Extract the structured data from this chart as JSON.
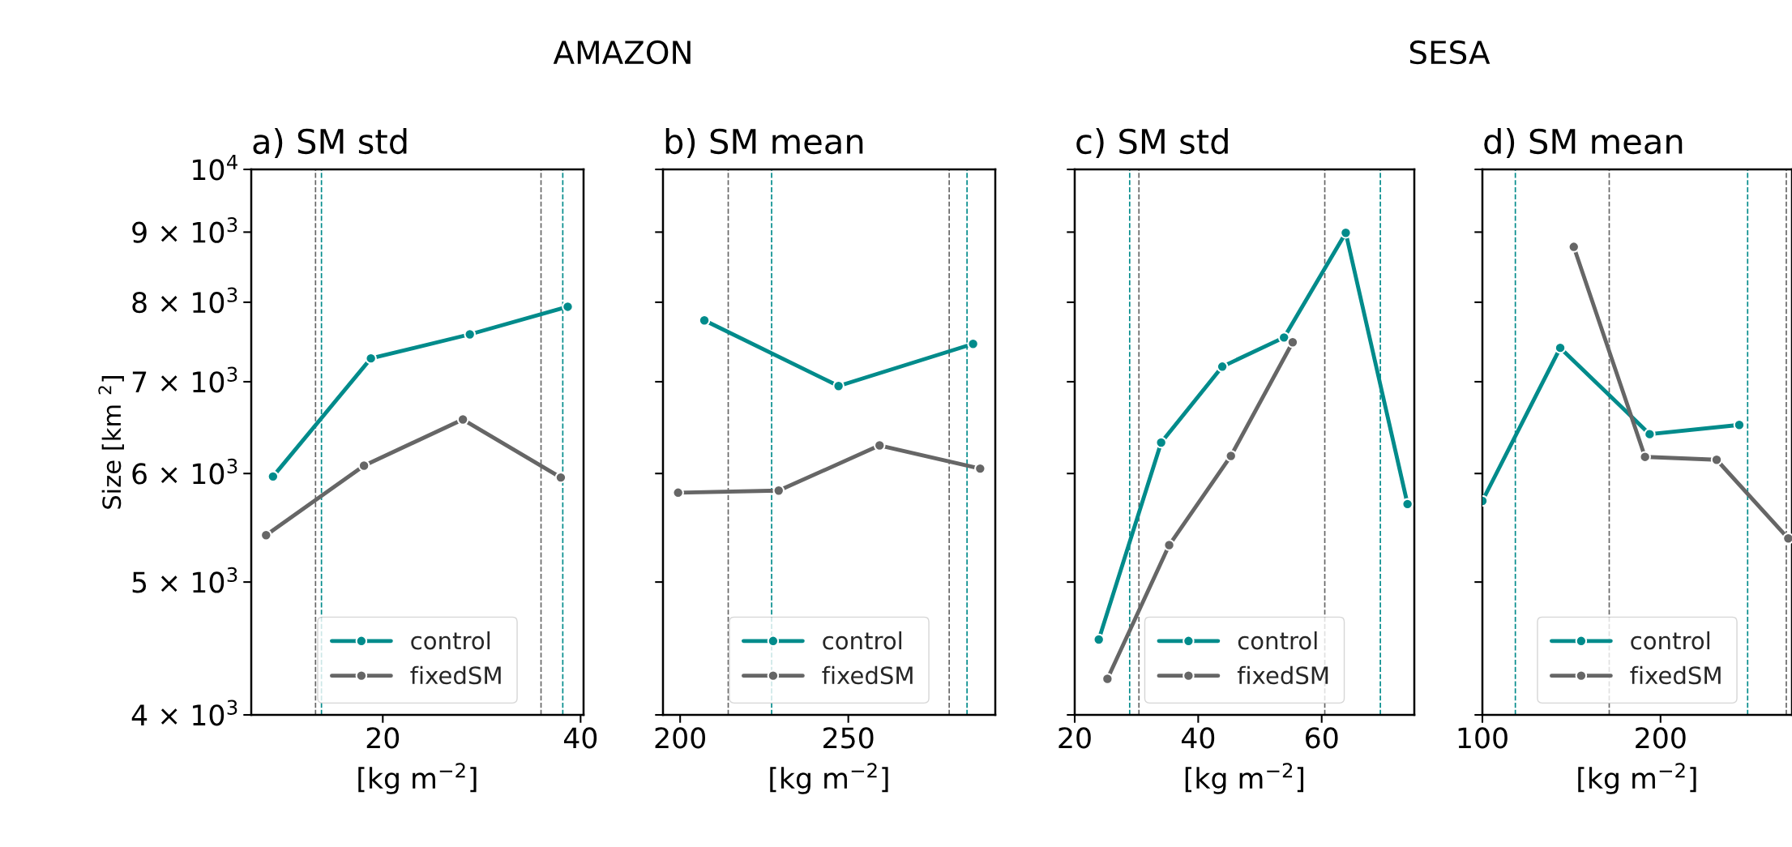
{
  "chart_data": [
    {
      "type": "line",
      "title": "a) SM std",
      "annotations": [
        "AMAZON"
      ],
      "xlabel": "[kg m$^{−2}$]",
      "ylabel": "Size [km $^{2}$]",
      "log": true,
      "xlim": [
        6.7,
        40.3
      ],
      "xticks": [
        20,
        40
      ],
      "ylim": [
        4000,
        10000
      ],
      "yticks": [
        {
          "value": 4000,
          "label": "4 × 10$^{3}$"
        },
        {
          "value": 5000,
          "label": "5 × 10$^{3}$"
        },
        {
          "value": 6000,
          "label": "6 × 10$^{3}$"
        },
        {
          "value": 7000,
          "label": "7 × 10$^{3}$"
        },
        {
          "value": 8000,
          "label": "8 × 10$^{3}$"
        },
        {
          "value": 9000,
          "label": "9 × 10$^{3}$"
        },
        {
          "value": 10000,
          "label": "10$^{4}$"
        }
      ],
      "marker": "circle",
      "line_style": "solid",
      "legend": "bottom",
      "grid": false,
      "series": [
        {
          "name": "control",
          "color": "#008b8b",
          "x": [
            8.9,
            18.8,
            28.8,
            38.7
          ],
          "values": [
            5970,
            7280,
            7580,
            7940
          ]
        },
        {
          "name": "fixedSM",
          "color": "#666666",
          "x": [
            8.2,
            18.1,
            28.1,
            38.0
          ],
          "values": [
            5410,
            6080,
            6570,
            5960
          ]
        }
      ],
      "ref_lines": [
        {
          "axis": "x",
          "value": 13.2,
          "color": "#666666",
          "line_style": "dashed"
        },
        {
          "axis": "x",
          "value": 13.8,
          "color": "#008b8b",
          "line_style": "dashed"
        },
        {
          "axis": "x",
          "value": 36.0,
          "color": "#666666",
          "line_style": "dashed"
        },
        {
          "axis": "x",
          "value": 38.2,
          "color": "#008b8b",
          "line_style": "dashed"
        }
      ]
    },
    {
      "type": "line",
      "title": "b) SM mean",
      "xlabel": "[kg m$^{−2}$]",
      "log": true,
      "xlim": [
        194.9,
        293.7
      ],
      "xticks": [
        200,
        250
      ],
      "ylim": [
        4000,
        10000
      ],
      "yticks": [
        {
          "value": 4000,
          "label": null
        },
        {
          "value": 5000,
          "label": null
        },
        {
          "value": 6000,
          "label": null
        },
        {
          "value": 7000,
          "label": null
        },
        {
          "value": 8000,
          "label": null
        },
        {
          "value": 9000,
          "label": null
        },
        {
          "value": 10000,
          "label": null
        }
      ],
      "tick_labels": "x",
      "marker": "circle",
      "line_style": "solid",
      "legend": "bottom",
      "grid": false,
      "series": [
        {
          "name": "control",
          "color": "#008b8b",
          "x": [
            207.2,
            247.1,
            287.1
          ],
          "values": [
            7760,
            6950,
            7460
          ]
        },
        {
          "name": "fixedSM",
          "color": "#666666",
          "x": [
            199.4,
            229.3,
            259.3,
            289.2
          ],
          "values": [
            5810,
            5830,
            6290,
            6050
          ]
        }
      ],
      "ref_lines": [
        {
          "axis": "x",
          "value": 214.3,
          "color": "#666666",
          "line_style": "dashed"
        },
        {
          "axis": "x",
          "value": 227.2,
          "color": "#008b8b",
          "line_style": "dashed"
        },
        {
          "axis": "x",
          "value": 280.0,
          "color": "#666666",
          "line_style": "dashed"
        },
        {
          "axis": "x",
          "value": 285.3,
          "color": "#008b8b",
          "line_style": "dashed"
        }
      ]
    },
    {
      "type": "line",
      "title": "c) SM std",
      "annotations": [
        "SESA"
      ],
      "xlabel": "[kg m$^{−2}$]",
      "log": true,
      "xlim": [
        20,
        75
      ],
      "xticks": [
        20,
        40,
        60
      ],
      "ylim": [
        4000,
        10000
      ],
      "yticks": [
        {
          "value": 4000,
          "label": null
        },
        {
          "value": 5000,
          "label": null
        },
        {
          "value": 6000,
          "label": null
        },
        {
          "value": 7000,
          "label": null
        },
        {
          "value": 8000,
          "label": null
        },
        {
          "value": 9000,
          "label": null
        },
        {
          "value": 10000,
          "label": null
        }
      ],
      "tick_labels": "x",
      "marker": "circle",
      "line_style": "solid",
      "legend": "bottom",
      "grid": false,
      "series": [
        {
          "name": "control",
          "color": "#008b8b",
          "x": [
            23.9,
            34.0,
            43.9,
            53.9,
            63.9,
            73.9
          ],
          "values": [
            4540,
            6320,
            7180,
            7540,
            8990,
            5700
          ]
        },
        {
          "name": "fixedSM",
          "color": "#666666",
          "x": [
            25.3,
            35.3,
            45.3,
            55.3
          ],
          "values": [
            4250,
            5320,
            6180,
            7480
          ]
        }
      ],
      "ref_lines": [
        {
          "axis": "x",
          "value": 28.9,
          "color": "#008b8b",
          "line_style": "dashed"
        },
        {
          "axis": "x",
          "value": 30.4,
          "color": "#666666",
          "line_style": "dashed"
        },
        {
          "axis": "x",
          "value": 60.5,
          "color": "#666666",
          "line_style": "dashed"
        },
        {
          "axis": "x",
          "value": 69.5,
          "color": "#008b8b",
          "line_style": "dashed"
        }
      ]
    },
    {
      "type": "line",
      "title": "d) SM mean",
      "xlabel": "[kg m$^{−2}$]",
      "log": true,
      "xlim": [
        100,
        273.8
      ],
      "xticks": [
        100,
        200
      ],
      "ylim": [
        4000,
        10000
      ],
      "yticks": [
        {
          "value": 4000,
          "label": null
        },
        {
          "value": 5000,
          "label": null
        },
        {
          "value": 6000,
          "label": null
        },
        {
          "value": 7000,
          "label": null
        },
        {
          "value": 8000,
          "label": null
        },
        {
          "value": 9000,
          "label": null
        },
        {
          "value": 10000,
          "label": null
        }
      ],
      "tick_labels": "x",
      "marker": "circle",
      "line_style": "solid",
      "legend": "bottom",
      "grid": false,
      "series": [
        {
          "name": "control",
          "color": "#008b8b",
          "x": [
            100,
            143.7,
            193.9,
            244.2
          ],
          "values": [
            5730,
            7410,
            6410,
            6510
          ]
        },
        {
          "name": "fixedSM",
          "color": "#666666",
          "x": [
            151.3,
            191.3,
            231.5,
            271.7
          ],
          "values": [
            8780,
            6170,
            6140,
            5380
          ]
        }
      ],
      "ref_lines": [
        {
          "axis": "x",
          "value": 118.5,
          "color": "#008b8b",
          "line_style": "dashed"
        },
        {
          "axis": "x",
          "value": 171.2,
          "color": "#666666",
          "line_style": "dashed"
        },
        {
          "axis": "x",
          "value": 248.9,
          "color": "#008b8b",
          "line_style": "dashed"
        },
        {
          "axis": "x",
          "value": 270.6,
          "color": "#666666",
          "line_style": "dashed"
        }
      ]
    }
  ]
}
